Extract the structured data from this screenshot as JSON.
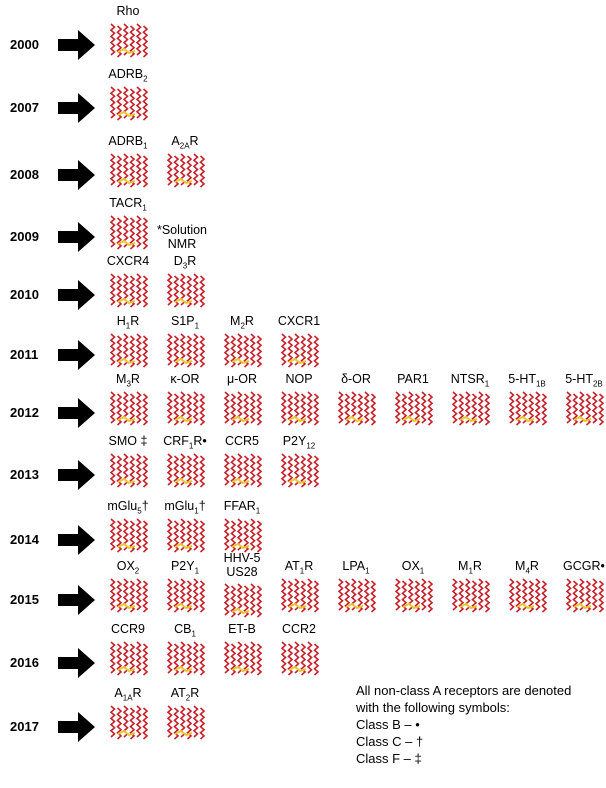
{
  "rows": [
    {
      "year": "2000",
      "receptors": [
        {
          "label": [
            "Rho"
          ]
        }
      ]
    },
    {
      "year": "2007",
      "receptors": [
        {
          "label": [
            "ADRB",
            {
              "sub": "2"
            }
          ]
        }
      ]
    },
    {
      "year": "2008",
      "receptors": [
        {
          "label": [
            "ADRB",
            {
              "sub": "1"
            }
          ]
        },
        {
          "label": [
            "A",
            {
              "sub": "2A"
            },
            "R"
          ]
        }
      ]
    },
    {
      "year": "2009",
      "receptors": [
        {
          "label": [
            "TACR",
            {
              "sub": "1"
            }
          ]
        }
      ],
      "note": [
        "*Solution",
        "NMR"
      ]
    },
    {
      "year": "2010",
      "receptors": [
        {
          "label": [
            "CXCR4"
          ]
        },
        {
          "label": [
            "D",
            {
              "sub": "3"
            },
            "R"
          ]
        }
      ]
    },
    {
      "year": "2011",
      "receptors": [
        {
          "label": [
            "H",
            {
              "sub": "1"
            },
            "R"
          ]
        },
        {
          "label": [
            "S1P",
            {
              "sub": "1"
            }
          ]
        },
        {
          "label": [
            "M",
            {
              "sub": "2"
            },
            "R"
          ]
        },
        {
          "label": [
            "CXCR1"
          ]
        }
      ]
    },
    {
      "year": "2012",
      "receptors": [
        {
          "label": [
            "M",
            {
              "sub": "3"
            },
            "R"
          ]
        },
        {
          "label": [
            "κ-OR"
          ]
        },
        {
          "label": [
            "μ-OR"
          ]
        },
        {
          "label": [
            "NOP"
          ]
        },
        {
          "label": [
            "δ-OR"
          ]
        },
        {
          "label": [
            "PAR1"
          ]
        },
        {
          "label": [
            "NTSR",
            {
              "sub": "1"
            }
          ]
        },
        {
          "label": [
            "5-HT",
            {
              "sub": "1B"
            }
          ]
        },
        {
          "label": [
            "5-HT",
            {
              "sub": "2B"
            }
          ]
        }
      ]
    },
    {
      "year": "2013",
      "receptors": [
        {
          "label": [
            "SMO ‡"
          ]
        },
        {
          "label": [
            "CRF",
            {
              "sub": "1"
            },
            "R•"
          ]
        },
        {
          "label": [
            "CCR5"
          ]
        },
        {
          "label": [
            "P2Y",
            {
              "sub": "12"
            }
          ]
        }
      ]
    },
    {
      "year": "2014",
      "receptors": [
        {
          "label": [
            "mGlu",
            {
              "sub": "5"
            },
            "†"
          ]
        },
        {
          "label": [
            "mGlu",
            {
              "sub": "1"
            },
            "†"
          ]
        },
        {
          "label": [
            "FFAR",
            {
              "sub": "1"
            }
          ]
        }
      ]
    },
    {
      "year": "2015",
      "receptors": [
        {
          "label": [
            "OX",
            {
              "sub": "2"
            }
          ]
        },
        {
          "label": [
            "P2Y",
            {
              "sub": "1"
            }
          ]
        },
        {
          "label": [
            "HHV-5"
          ],
          "line2": "US28"
        },
        {
          "label": [
            "AT",
            {
              "sub": "1"
            },
            "R"
          ]
        },
        {
          "label": [
            "LPA",
            {
              "sub": "1"
            }
          ]
        },
        {
          "label": [
            "OX",
            {
              "sub": "1"
            }
          ]
        },
        {
          "label": [
            "M",
            {
              "sub": "1"
            },
            "R"
          ]
        },
        {
          "label": [
            "M",
            {
              "sub": "4"
            },
            "R"
          ]
        },
        {
          "label": [
            "GCGR•"
          ]
        }
      ]
    },
    {
      "year": "2016",
      "receptors": [
        {
          "label": [
            "CCR9"
          ]
        },
        {
          "label": [
            "CB",
            {
              "sub": "1"
            }
          ]
        },
        {
          "label": [
            "ET-B"
          ]
        },
        {
          "label": [
            "CCR2"
          ]
        }
      ]
    },
    {
      "year": "2017",
      "receptors": [
        {
          "label": [
            "A",
            {
              "sub": "1A"
            },
            "R"
          ]
        },
        {
          "label": [
            "AT",
            {
              "sub": "2"
            },
            "R"
          ]
        }
      ]
    }
  ],
  "legend": [
    "All non-class A receptors are denoted",
    "with the following symbols:",
    "Class B – •",
    "Class C – †",
    "Class F – ‡"
  ]
}
